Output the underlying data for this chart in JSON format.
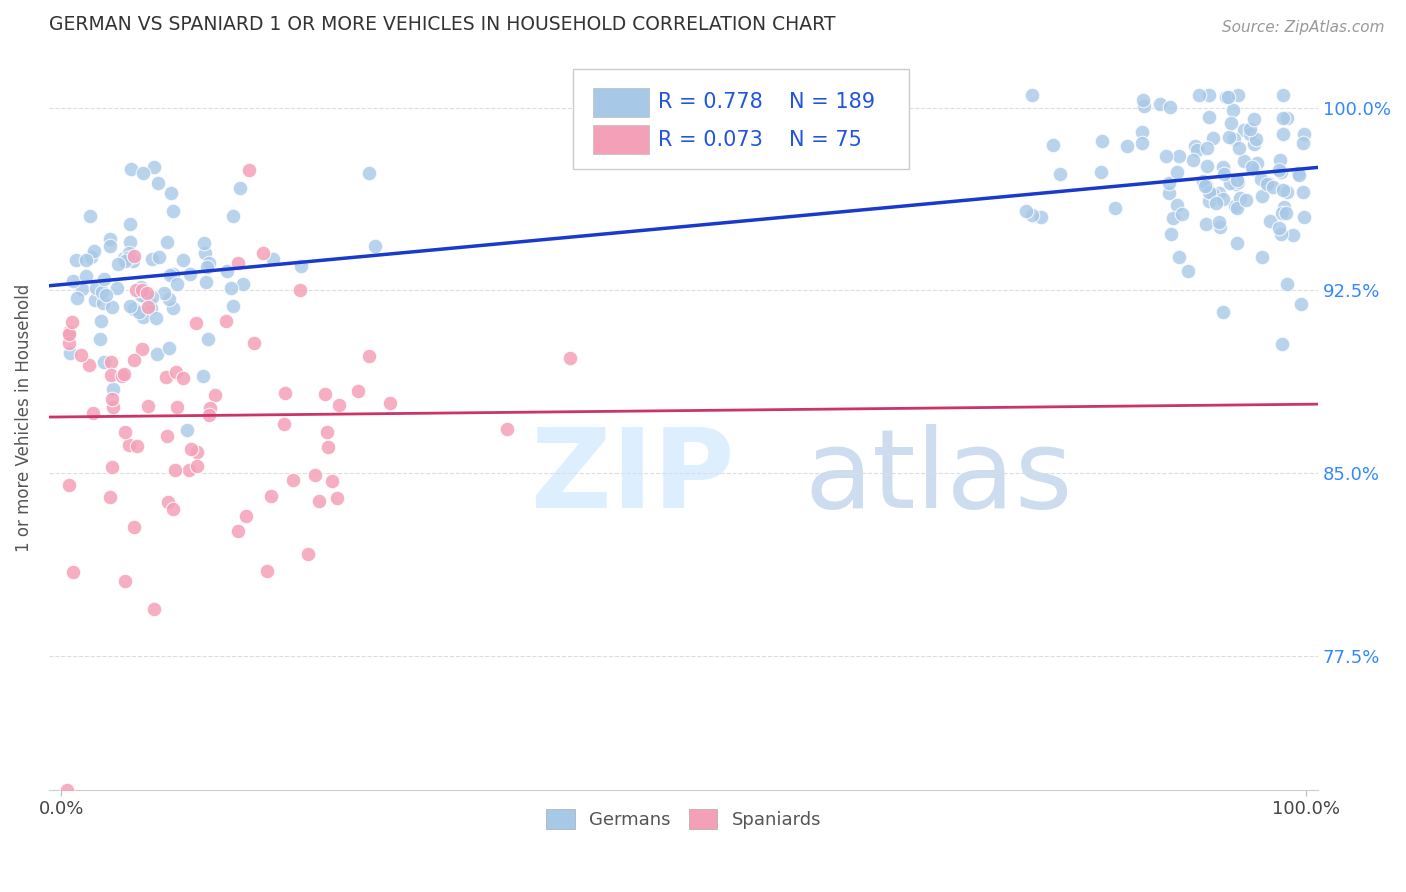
{
  "title": "GERMAN VS SPANIARD 1 OR MORE VEHICLES IN HOUSEHOLD CORRELATION CHART",
  "source": "Source: ZipAtlas.com",
  "ylabel": "1 or more Vehicles in Household",
  "german_R": "0.778",
  "german_N": "189",
  "spaniard_R": "0.073",
  "spaniard_N": "75",
  "german_color": "#a8c8e8",
  "german_line_color": "#1a3acc",
  "spaniard_color": "#f4a0b8",
  "spaniard_line_color": "#cc3366",
  "background_color": "#ffffff",
  "xlim": [
    -0.01,
    1.01
  ],
  "ylim": [
    0.72,
    1.025
  ],
  "yticks": [
    0.775,
    0.85,
    0.925,
    1.0
  ],
  "ytick_labels": [
    "77.5%",
    "85.0%",
    "92.5%",
    "100.0%"
  ],
  "xticks": [
    0.0,
    1.0
  ],
  "xtick_labels": [
    "0.0%",
    "100.0%"
  ],
  "legend_label_german": "Germans",
  "legend_label_spaniard": "Spaniards",
  "german_seed": 42,
  "spaniard_seed": 7
}
